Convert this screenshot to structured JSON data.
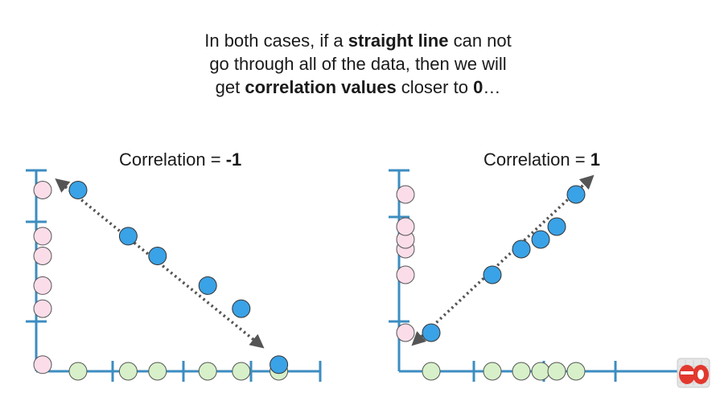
{
  "caption": {
    "line1_pre": "In both cases, if a ",
    "line1_bold": "straight line",
    "line1_post": " can not",
    "line2": "go through all of the data, then we will",
    "line3_pre": "get ",
    "line3_bold": "correlation values",
    "line3_mid": " closer to ",
    "line3_bold2": "0",
    "line3_post": "…"
  },
  "panels": [
    {
      "title_pre": "Correlation = ",
      "title_value": "-1",
      "x_points": [
        1,
        2.2,
        2.9,
        4.1,
        4.9,
        5.8
      ],
      "y_points": [
        5.5,
        4.1,
        3.5,
        2.6,
        1.9,
        0.2
      ],
      "arrow_start": [
        0.5,
        5.8
      ],
      "arrow_end": [
        5.4,
        0.75
      ]
    },
    {
      "title_pre": "Correlation = ",
      "title_value": "1",
      "x_points": [
        1,
        2.9,
        3.8,
        4.4,
        4.9,
        5.5
      ],
      "y_points": [
        1.2,
        3.0,
        3.8,
        4.1,
        4.5,
        5.5
      ],
      "arrow_start": [
        0.45,
        0.85
      ],
      "arrow_end": [
        6.0,
        6.05
      ]
    }
  ],
  "colors": {
    "axis": "#3c8dc1",
    "blue_point": "#3aa2e6",
    "pink_point": "#fadde9",
    "green_point": "#d7f0c9",
    "arrow": "#555555"
  }
}
